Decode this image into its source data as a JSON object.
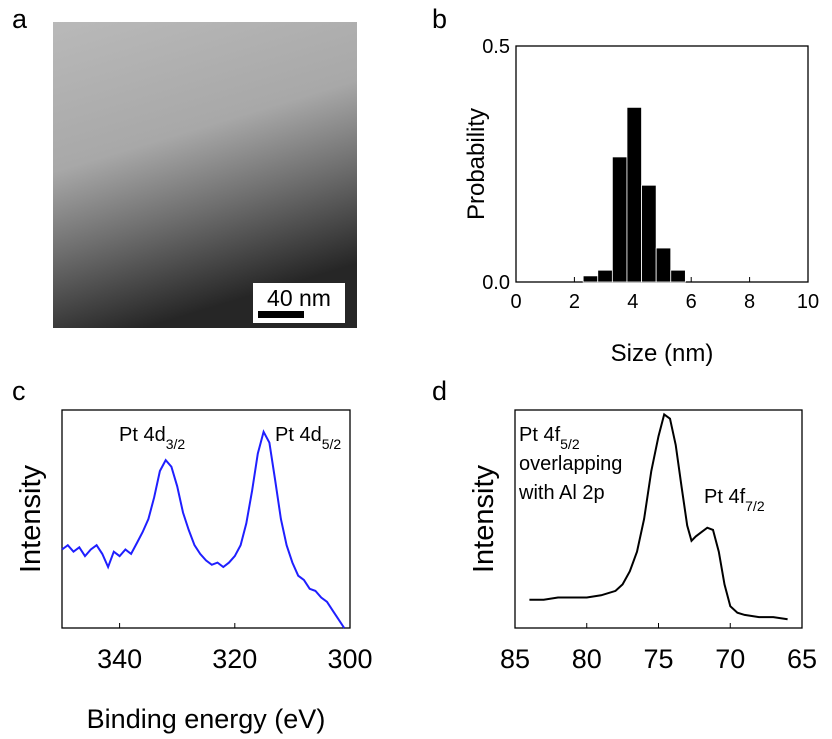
{
  "chart_data": [
    {
      "type": "image",
      "panel": "a",
      "scale_bar": "40 nm"
    },
    {
      "type": "histogram",
      "panel": "b",
      "xlabel": "Size (nm)",
      "ylabel": "Probability",
      "bins": [
        2.3,
        2.8,
        3.3,
        3.8,
        4.3,
        4.8,
        5.3,
        5.8
      ],
      "values": [
        0.013,
        0.025,
        0.265,
        0.37,
        0.205,
        0.072,
        0.025
      ],
      "color": "#000000",
      "xlim": [
        0,
        10
      ],
      "xticks": [
        0,
        2,
        4,
        6,
        8,
        10
      ],
      "ylim": [
        0,
        0.5
      ],
      "yticks": [
        {
          "value": 0,
          "label": "0.0"
        },
        {
          "value": 0.5,
          "label": "0.5"
        }
      ]
    },
    {
      "type": "line",
      "panel": "c",
      "xlabel": "Binding energy (eV)",
      "ylabel": "Intensity",
      "color": "#1f1fff",
      "x": [
        350,
        349,
        348,
        347,
        346,
        345,
        344,
        343,
        342,
        341,
        340,
        339,
        338,
        337,
        336,
        335,
        334,
        333,
        332,
        331,
        330,
        329,
        328,
        327,
        326,
        325,
        324,
        323,
        322,
        321,
        320,
        319,
        318,
        317,
        316,
        315,
        314,
        313,
        312,
        311,
        310,
        309,
        308,
        307,
        306,
        305,
        304,
        303,
        302,
        301
      ],
      "values": [
        36,
        38,
        35,
        37,
        33,
        36,
        38,
        34,
        28,
        35,
        33,
        36,
        34,
        39,
        44,
        50,
        60,
        72,
        77,
        74,
        65,
        53,
        45,
        38,
        34,
        31,
        29,
        30,
        28,
        30,
        33,
        38,
        48,
        63,
        80,
        90,
        85,
        68,
        50,
        38,
        30,
        24,
        22,
        18,
        17,
        14,
        12,
        8,
        4,
        0
      ],
      "xlim": [
        350,
        300
      ],
      "xticks": [
        340,
        320,
        300
      ],
      "ylim": [
        0,
        100
      ],
      "annotations": [
        {
          "text": "Pt 4d",
          "sub": "3/2"
        },
        {
          "text": "Pt 4d",
          "sub": "5/2"
        }
      ]
    },
    {
      "type": "line",
      "panel": "d",
      "ylabel": "Intensity",
      "color": "#000000",
      "x": [
        84,
        83,
        82,
        81,
        80,
        79,
        78,
        77.5,
        77,
        76.5,
        76,
        75.5,
        75,
        74.6,
        74.2,
        73.8,
        73.4,
        73,
        72.7,
        72.4,
        72,
        71.6,
        71.2,
        70.8,
        70.4,
        70,
        69.5,
        69,
        68,
        67,
        66
      ],
      "values": [
        13,
        13,
        14,
        14,
        14,
        15,
        17,
        20,
        26,
        35,
        50,
        72,
        88,
        98,
        96,
        84,
        65,
        47,
        40,
        42,
        44,
        46,
        45,
        35,
        20,
        10,
        7,
        6,
        5,
        5,
        4
      ],
      "xlim": [
        85,
        65
      ],
      "xticks": [
        85,
        80,
        75,
        70,
        65
      ],
      "ylim": [
        0,
        100
      ],
      "annotations": [
        {
          "text": "Pt 4f",
          "sub": "5/2",
          "rest": [
            "overlapping",
            "with Al 2p"
          ]
        },
        {
          "text": "Pt 4f",
          "sub": "7/2"
        }
      ]
    }
  ]
}
